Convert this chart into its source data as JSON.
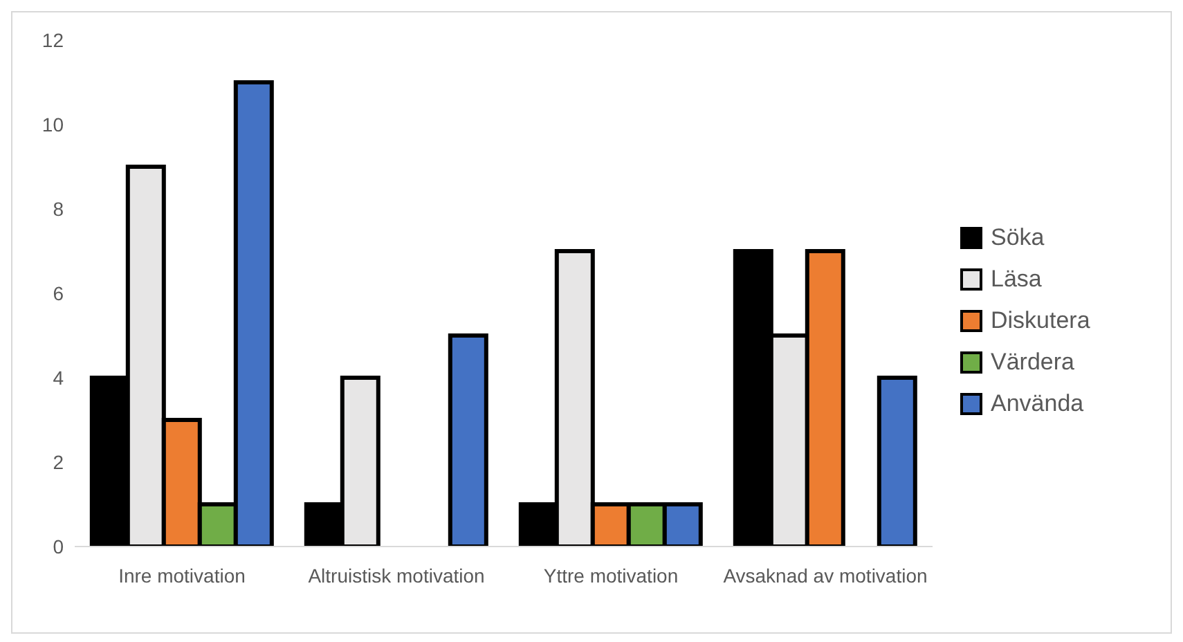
{
  "chart_data": {
    "type": "bar",
    "categories": [
      "Inre motivation",
      "Altruistisk motivation",
      "Yttre motivation",
      "Avsaknad av motivation"
    ],
    "series": [
      {
        "name": "Söka",
        "color": "#000000",
        "values": [
          4,
          1,
          1,
          7
        ]
      },
      {
        "name": "Läsa",
        "color": "#e7e6e6",
        "values": [
          9,
          4,
          7,
          5
        ]
      },
      {
        "name": "Diskutera",
        "color": "#ed7d31",
        "values": [
          3,
          0,
          1,
          7
        ]
      },
      {
        "name": "Värdera",
        "color": "#70ad47",
        "values": [
          1,
          0,
          1,
          0
        ]
      },
      {
        "name": "Använda",
        "color": "#4472c4",
        "values": [
          11,
          5,
          1,
          4
        ]
      }
    ],
    "ylim": [
      0,
      12
    ],
    "yticks": [
      0,
      2,
      4,
      6,
      8,
      10,
      12
    ],
    "grid": false,
    "legend": "right"
  }
}
